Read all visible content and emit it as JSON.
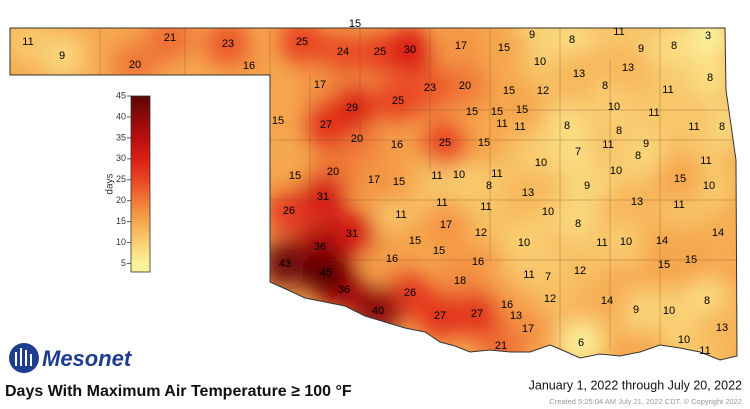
{
  "logo": "Mesonet",
  "title": "Days With Maximum Air Temperature ≥ 100 °F",
  "date_range": "January 1, 2022 through July 20, 2022",
  "created": "Created 5:25:04 AM July 21, 2022 CDT. © Copyright 2022",
  "colorbar": {
    "label": "days",
    "clim": [
      3,
      45
    ],
    "ticks": [
      5,
      10,
      15,
      20,
      25,
      30,
      35,
      40,
      45
    ],
    "colors": [
      "#fbf39c",
      "#f9cf72",
      "#f6a74e",
      "#f07a38",
      "#e94524",
      "#db1f15",
      "#b80f0f",
      "#8c0a0a",
      "#5c0606"
    ]
  },
  "stations": [
    11,
    9,
    21,
    20,
    23,
    16,
    25,
    15,
    24,
    25,
    30,
    17,
    15,
    9,
    8,
    11,
    9,
    8,
    3,
    17,
    10,
    13,
    13,
    8,
    29,
    25,
    23,
    20,
    15,
    12,
    8,
    11,
    15,
    27,
    15,
    15,
    11,
    15,
    11,
    10,
    11,
    20,
    16,
    25,
    15,
    8,
    8,
    11,
    8,
    7,
    11,
    9,
    8,
    11,
    15,
    20,
    17,
    15,
    11,
    10,
    11,
    8,
    10,
    10,
    15,
    10,
    26,
    31,
    11,
    11,
    11,
    13,
    9,
    13,
    11,
    17,
    31,
    10,
    8,
    12,
    15,
    15,
    10,
    11,
    10,
    14,
    14,
    36,
    16,
    16,
    43,
    45,
    11,
    7,
    12,
    15,
    15,
    36,
    18,
    26,
    40,
    16,
    27,
    27,
    13,
    12,
    14,
    9,
    10,
    8,
    17,
    21,
    13,
    6,
    10,
    11
  ]
}
